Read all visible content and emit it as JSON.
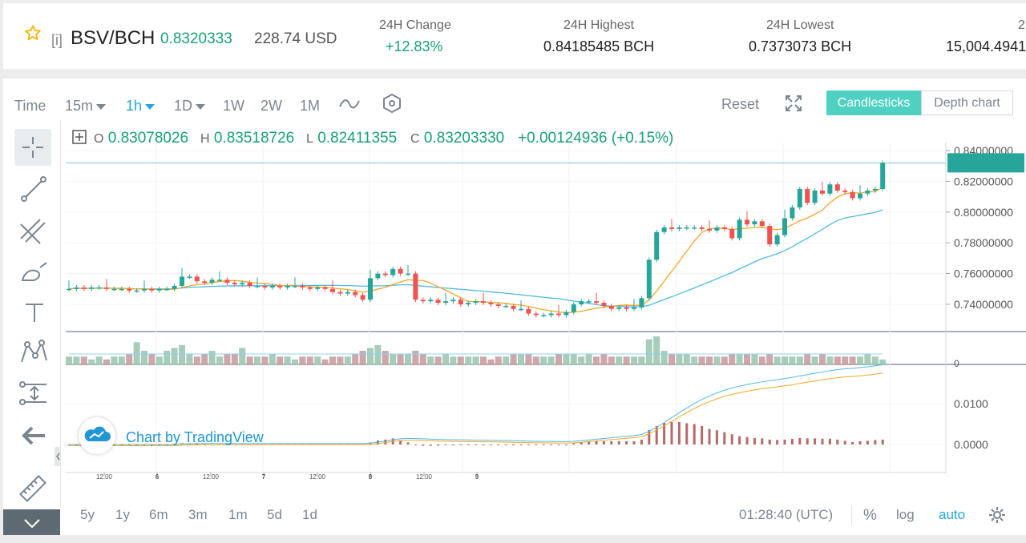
{
  "header": {
    "info_icon": "[i]",
    "pair": "BSV/BCH",
    "price": "0.8320333",
    "usd_value": "228.74 USD",
    "stats": [
      {
        "label": "24H Change",
        "value": "+12.83%"
      },
      {
        "label": "24H Highest",
        "value": "0.84185485 BCH"
      },
      {
        "label": "24H Lowest",
        "value": "0.7373073 BCH"
      },
      {
        "label": "2",
        "value": "15,004.4941"
      }
    ]
  },
  "toolbar": {
    "time_label": "Time",
    "intervals": [
      "15m",
      "1h",
      "1D",
      "1W",
      "2W",
      "1M"
    ],
    "reset_label": "Reset",
    "candlesticks_label": "Candlesticks",
    "depth_chart_label": "Depth chart"
  },
  "ohlc": {
    "o_key": "O",
    "o": "0.83078026",
    "h_key": "H",
    "h": "0.83518726",
    "l_key": "L",
    "l": "0.82411355",
    "c_key": "C",
    "c": "0.83203330",
    "change": "+0.00124936 (+0.15%)"
  },
  "watermark": "Chart by TradingView",
  "footer": {
    "ranges": [
      "5y",
      "1y",
      "6m",
      "3m",
      "1m",
      "5d",
      "1d"
    ],
    "clock": "01:28:40 (UTC)",
    "percent": "%",
    "log": "log",
    "auto": "auto"
  },
  "colors": {
    "up": "#26a69a",
    "down": "#ef5350",
    "accent": "#21a7d8",
    "ma_fast": "#f5a623",
    "ma_slow": "#4eb9e6"
  },
  "chart_data": {
    "type": "candlestick",
    "price_axis": [
      "0.84000000",
      "0.82000000",
      "0.80000000",
      "0.78000000",
      "0.76000000",
      "0.74000000"
    ],
    "macd_axis": [
      "0.0100",
      "0.0000"
    ],
    "volume_axis": [
      "0"
    ],
    "time_labels": [
      "12:00",
      "6",
      "12:00",
      "7",
      "12:00",
      "8",
      "12:00",
      "9"
    ],
    "close": [
      0.75,
      0.751,
      0.75,
      0.751,
      0.751,
      0.75,
      0.75,
      0.75,
      0.749,
      0.749,
      0.75,
      0.749,
      0.75,
      0.75,
      0.752,
      0.758,
      0.758,
      0.755,
      0.754,
      0.756,
      0.756,
      0.754,
      0.753,
      0.754,
      0.752,
      0.752,
      0.751,
      0.752,
      0.751,
      0.752,
      0.752,
      0.751,
      0.75,
      0.751,
      0.75,
      0.748,
      0.747,
      0.748,
      0.746,
      0.743,
      0.757,
      0.76,
      0.759,
      0.763,
      0.76,
      0.76,
      0.743,
      0.742,
      0.743,
      0.741,
      0.742,
      0.743,
      0.74,
      0.741,
      0.742,
      0.741,
      0.74,
      0.739,
      0.739,
      0.737,
      0.737,
      0.734,
      0.733,
      0.733,
      0.734,
      0.733,
      0.735,
      0.74,
      0.742,
      0.742,
      0.741,
      0.739,
      0.737,
      0.738,
      0.737,
      0.738,
      0.744,
      0.769,
      0.787,
      0.79,
      0.789,
      0.79,
      0.79,
      0.79,
      0.789,
      0.788,
      0.79,
      0.789,
      0.783,
      0.795,
      0.792,
      0.794,
      0.791,
      0.779,
      0.785,
      0.796,
      0.803,
      0.815,
      0.806,
      0.814,
      0.812,
      0.818,
      0.814,
      0.813,
      0.809,
      0.812,
      0.814,
      0.815,
      0.832
    ],
    "volume": [
      3,
      3,
      3,
      2,
      3,
      2,
      3,
      3,
      4,
      8,
      5,
      4,
      3,
      5,
      6,
      7,
      4,
      3,
      4,
      5,
      3,
      4,
      4,
      6,
      3,
      3,
      3,
      4,
      3,
      3,
      2,
      3,
      3,
      3,
      2,
      3,
      3,
      3,
      4,
      5,
      6,
      7,
      5,
      4,
      4,
      4,
      5,
      4,
      3,
      3,
      4,
      3,
      3,
      3,
      3,
      3,
      2,
      3,
      3,
      4,
      4,
      4,
      3,
      3,
      3,
      4,
      4,
      4,
      3,
      4,
      3,
      4,
      3,
      3,
      3,
      3,
      3,
      9,
      10,
      5,
      4,
      4,
      4,
      3,
      3,
      3,
      3,
      3,
      4,
      4,
      4,
      4,
      3,
      4,
      3,
      3,
      3,
      3,
      4,
      3,
      4,
      3,
      3,
      3,
      3,
      3,
      4,
      3,
      2
    ],
    "macd_hist": [
      0,
      0,
      0,
      0,
      0,
      0,
      0,
      0,
      0,
      0,
      0,
      0,
      0,
      0,
      0.0002,
      0.0003,
      0.0003,
      0.0002,
      0.0001,
      0,
      0,
      0,
      0,
      0,
      0,
      0,
      0,
      0,
      0,
      0,
      0,
      0,
      0,
      0,
      0,
      0,
      0,
      0,
      0,
      0,
      0.0005,
      0.001,
      0.0012,
      0.0015,
      0.001,
      0.0005,
      -0.0002,
      -0.0003,
      -0.0003,
      -0.0003,
      -0.0002,
      -0.0001,
      -0.0002,
      -0.0002,
      -0.0001,
      -0.0001,
      -0.0001,
      -0.0001,
      -0.0002,
      -0.0002,
      -0.0002,
      -0.0002,
      -0.0002,
      -0.0001,
      -0.0001,
      -0.0001,
      0,
      0.0003,
      0.0006,
      0.0008,
      0.0009,
      0.0008,
      0.0008,
      0.0008,
      0.0008,
      0.0008,
      0.0012,
      0.0035,
      0.0045,
      0.0053,
      0.0055,
      0.0055,
      0.0052,
      0.005,
      0.0045,
      0.0038,
      0.0035,
      0.003,
      0.0025,
      0.002,
      0.0018,
      0.0016,
      0.0015,
      0.0012,
      0.0011,
      0.0012,
      0.0014,
      0.0016,
      0.0015,
      0.0015,
      0.0014,
      0.0014,
      0.0012,
      0.0009,
      0.0006,
      0.0008,
      0.0009,
      0.0011,
      0.0012
    ]
  }
}
